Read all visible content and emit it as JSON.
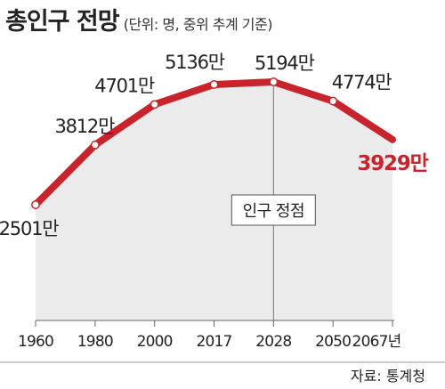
{
  "header": {
    "title": "총인구 전망",
    "subtitle": "(단위: 명, 중위 추계 기준)"
  },
  "footer": {
    "source": "자료: 통계청"
  },
  "colors": {
    "line": "#c8242b",
    "area": "#ebebeb",
    "point": "#ffffff",
    "highlight_label": "#c8242b",
    "text": "#222222"
  },
  "chart_data": {
    "type": "line",
    "title": "총인구 전망",
    "subtitle": "(단위: 명, 중위 추계 기준)",
    "categories": [
      "1960",
      "1980",
      "2000",
      "2017",
      "2028",
      "2050",
      "2067년"
    ],
    "series": [
      {
        "values": [
          2501,
          3812,
          4701,
          5136,
          5194,
          4774,
          3929
        ],
        "labels": [
          "2501만",
          "3812만",
          "4701만",
          "5136만",
          "5194만",
          "4774만",
          "3929만"
        ]
      }
    ],
    "annotation": {
      "text": "인구 정점",
      "at_category": "2028"
    },
    "highlight_last": true,
    "grid": false
  }
}
